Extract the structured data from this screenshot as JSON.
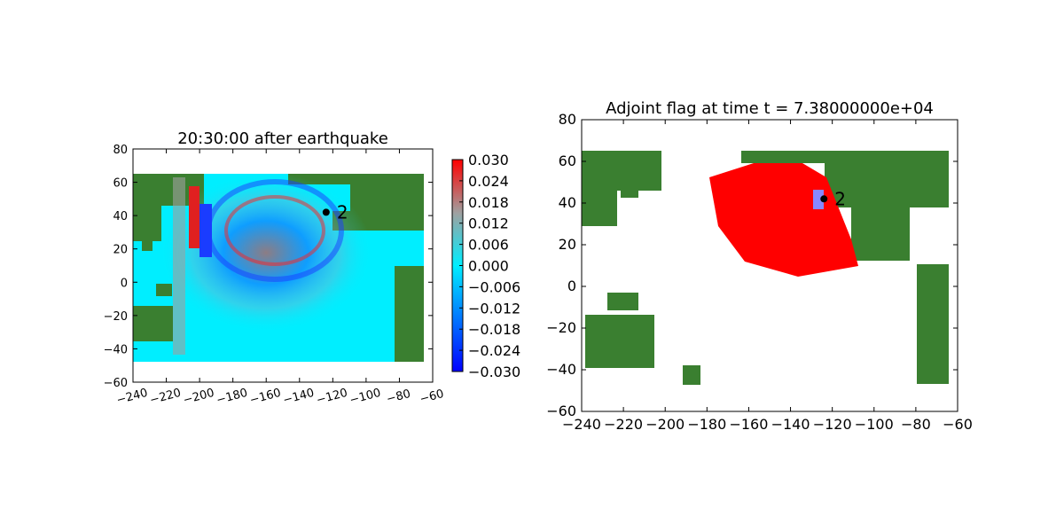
{
  "chart_data": [
    {
      "type": "heatmap",
      "title": "20:30:00 after earthquake",
      "xlim": [
        -240,
        -60
      ],
      "ylim": [
        -60,
        80
      ],
      "xticks": [
        "−240",
        "−220",
        "−200",
        "−180",
        "−160",
        "−140",
        "−120",
        "−100",
        "−80",
        "−60"
      ],
      "yticks": [
        "80",
        "60",
        "40",
        "20",
        "0",
        "−20",
        "−40",
        "−60"
      ],
      "xtick_rotation": "rotated",
      "grid": false,
      "extent": {
        "lon": [
          -240,
          -65
        ],
        "lat": [
          -48,
          65
        ]
      },
      "gauge": {
        "label": "2",
        "lon": -124,
        "lat": 42
      },
      "colorbar": {
        "ticks": [
          "0.030",
          "0.024",
          "0.018",
          "0.012",
          "0.006",
          "0.000",
          "−0.006",
          "−0.012",
          "−0.018",
          "−0.024",
          "−0.030"
        ],
        "range": [
          -0.03,
          0.03
        ],
        "colors": [
          "#0000ff",
          "#00eeff",
          "#a0a0a0",
          "#ff0000"
        ]
      },
      "colors": {
        "land": "#3a7f30",
        "ocean": "#00eeff"
      }
    },
    {
      "type": "heatmap",
      "title": "Adjoint flag at time t = 7.38000000e+04",
      "xlim": [
        -240,
        -60
      ],
      "ylim": [
        -60,
        80
      ],
      "xticks": [
        "−240",
        "−220",
        "−200",
        "−180",
        "−160",
        "−140",
        "−120",
        "−100",
        "−80",
        "−60"
      ],
      "yticks": [
        "80",
        "60",
        "40",
        "20",
        "0",
        "−20",
        "−40",
        "−60"
      ],
      "grid": false,
      "gauge": {
        "label": "2",
        "lon": -124,
        "lat": 42
      },
      "colors": {
        "land": "#3a7f30",
        "flag": "#ff0000",
        "source": "#8888ff"
      }
    }
  ]
}
